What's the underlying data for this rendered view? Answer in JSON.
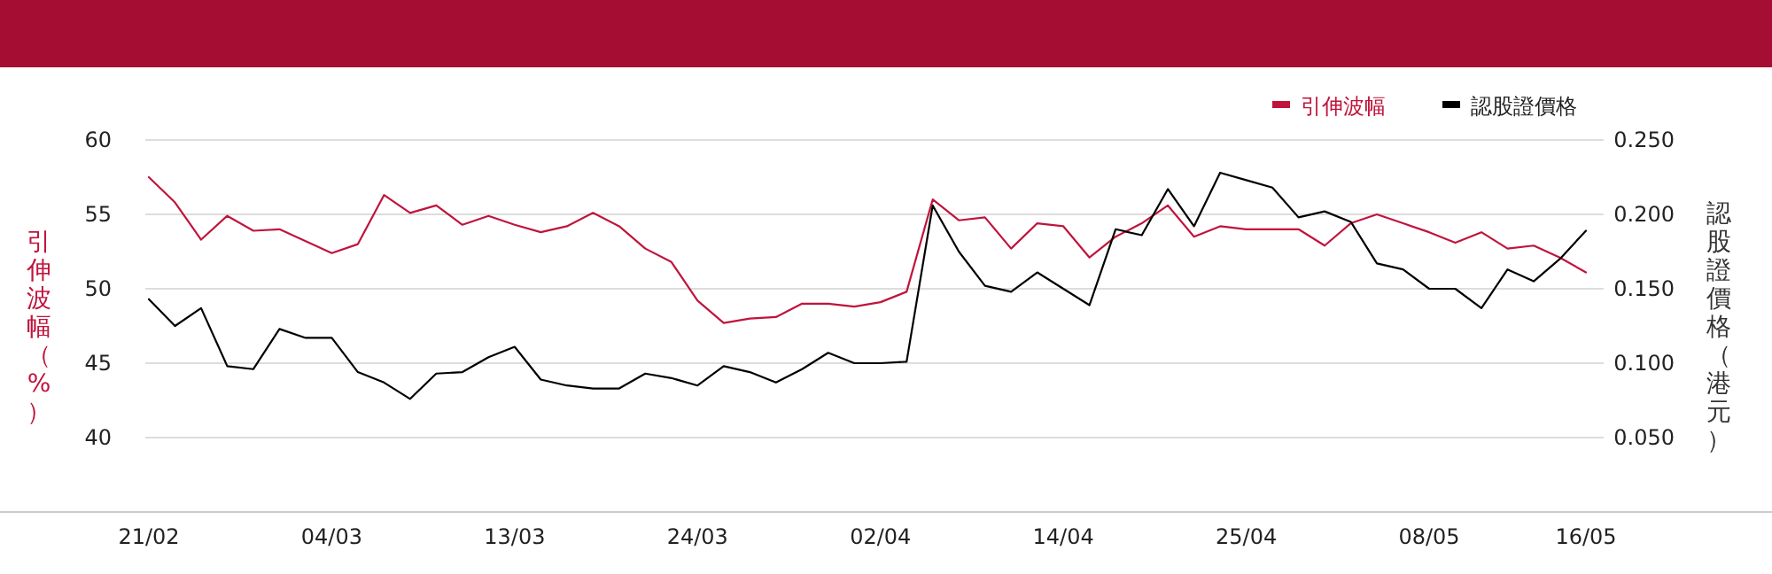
{
  "chart_data": {
    "type": "line",
    "ylabel": "引伸波幅（%）",
    "y2label": "認股證價格（港元）",
    "categories": [
      "21/02",
      null,
      null,
      null,
      null,
      null,
      null,
      "04/03",
      null,
      null,
      null,
      null,
      null,
      null,
      "13/03",
      null,
      null,
      null,
      null,
      null,
      null,
      "24/03",
      null,
      null,
      null,
      null,
      null,
      null,
      "02/04",
      null,
      null,
      null,
      null,
      null,
      null,
      "14/04",
      null,
      null,
      null,
      null,
      null,
      null,
      "25/04",
      null,
      null,
      null,
      null,
      null,
      null,
      "08/05",
      null,
      null,
      null,
      null,
      null,
      "16/05"
    ],
    "series": [
      {
        "name": "引伸波幅",
        "color": "#c0143c",
        "values": [
          57.5,
          55.8,
          53.3,
          54.9,
          53.9,
          54.0,
          53.2,
          52.4,
          53.0,
          56.3,
          55.1,
          55.6,
          54.3,
          54.9,
          54.3,
          53.8,
          54.2,
          55.1,
          54.2,
          52.7,
          51.8,
          49.2,
          47.7,
          48.0,
          48.1,
          49.0,
          49.0,
          48.8,
          49.1,
          49.8,
          56.0,
          54.6,
          54.8,
          52.7,
          54.4,
          54.2,
          52.1,
          53.5,
          54.4,
          55.6,
          53.5,
          54.2,
          54.0,
          54.0,
          54.0,
          52.9,
          54.4,
          55.0,
          54.4,
          53.8,
          53.1,
          53.8,
          52.7,
          52.9,
          52.1,
          51.1
        ]
      },
      {
        "name": "認股證價格",
        "color": "#000000",
        "axis": "y2",
        "values": [
          0.143,
          0.125,
          0.137,
          0.098,
          0.096,
          0.123,
          0.117,
          0.117,
          0.094,
          0.087,
          0.076,
          0.093,
          0.094,
          0.104,
          0.111,
          0.089,
          0.085,
          0.083,
          0.083,
          0.093,
          0.09,
          0.085,
          0.098,
          0.094,
          0.087,
          0.096,
          0.107,
          0.1,
          0.1,
          0.101,
          0.206,
          0.175,
          0.152,
          0.148,
          0.161,
          0.15,
          0.139,
          0.19,
          0.186,
          0.217,
          0.192,
          0.228,
          0.223,
          0.218,
          0.198,
          0.202,
          0.195,
          0.167,
          0.163,
          0.15,
          0.15,
          0.137,
          0.163,
          0.155,
          0.17,
          0.189
        ]
      }
    ],
    "ylim": [
      35,
      60
    ],
    "yticks": [
      40,
      45,
      50,
      55,
      60
    ],
    "y2lim": [
      0,
      0.25
    ],
    "y2ticks": [
      {
        "value": 0.05,
        "label": "0.050"
      },
      {
        "value": 0.1,
        "label": "0.100"
      },
      {
        "value": 0.15,
        "label": "0.150"
      },
      {
        "value": 0.2,
        "label": "0.200"
      },
      {
        "value": 0.25,
        "label": "0.250"
      }
    ],
    "grid": "y",
    "legend": "top right",
    "marker": "none",
    "line_style": "solid"
  }
}
